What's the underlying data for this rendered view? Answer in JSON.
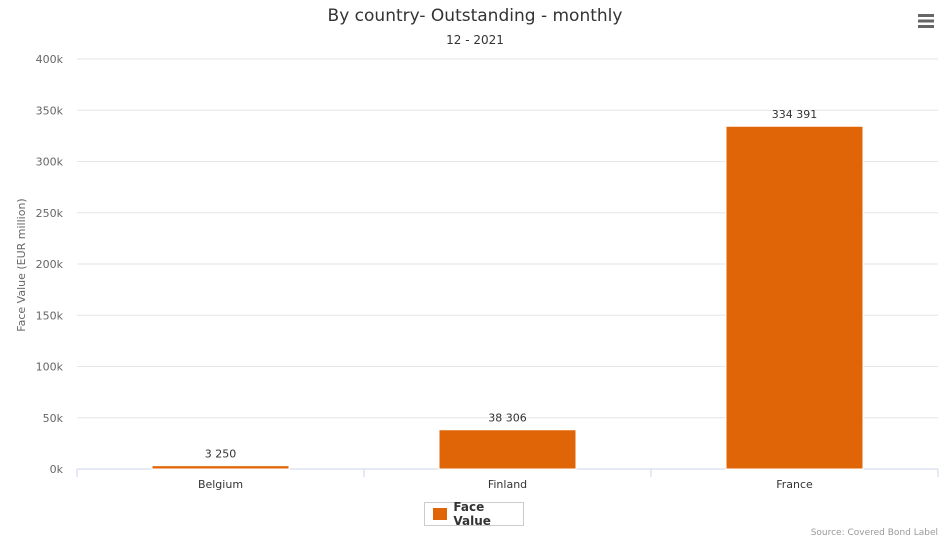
{
  "chart_data": {
    "type": "bar",
    "title": "By country- Outstanding - monthly",
    "subtitle": "12 - 2021",
    "ylabel": "Face Value (EUR million)",
    "xlabel": "",
    "categories": [
      "Belgium",
      "Finland",
      "France"
    ],
    "series": [
      {
        "name": "Face Value",
        "values": [
          3250,
          38306,
          334391
        ],
        "color": "#e06506"
      }
    ],
    "data_labels": [
      "3 250",
      "38 306",
      "334 391"
    ],
    "ylim": [
      0,
      400000
    ],
    "yticks": [
      0,
      50000,
      100000,
      150000,
      200000,
      250000,
      300000,
      350000,
      400000
    ],
    "ytick_labels": [
      "0k",
      "50k",
      "100k",
      "150k",
      "200k",
      "250k",
      "300k",
      "350k",
      "400k"
    ],
    "grid": true,
    "legend_position": "bottom-center"
  },
  "menu_icon": "hamburger-menu-icon",
  "credits": "Source: Covered Bond Label"
}
